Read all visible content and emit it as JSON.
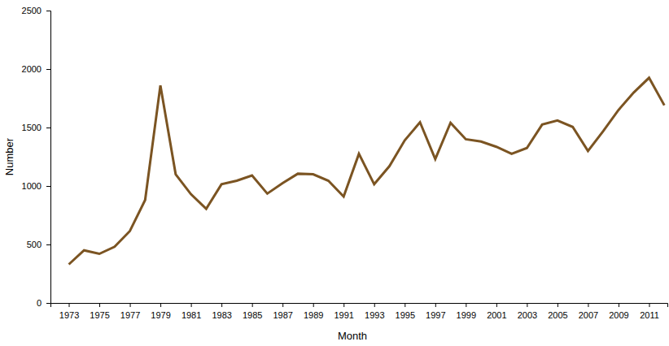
{
  "chart_data": {
    "type": "line",
    "x_label": "Month",
    "y_label": "Number",
    "x": [
      1973,
      1974,
      1975,
      1976,
      1977,
      1978,
      1979,
      1980,
      1981,
      1982,
      1983,
      1984,
      1985,
      1986,
      1987,
      1988,
      1989,
      1990,
      1991,
      1992,
      1993,
      1994,
      1995,
      1996,
      1997,
      1998,
      1999,
      2000,
      2001,
      2002,
      2003,
      2004,
      2005,
      2006,
      2007,
      2008,
      2009,
      2010,
      2011,
      2012
    ],
    "values": [
      330,
      450,
      420,
      480,
      615,
      880,
      1860,
      1100,
      930,
      805,
      1015,
      1045,
      1090,
      935,
      1025,
      1105,
      1100,
      1045,
      910,
      1275,
      1015,
      1170,
      1390,
      1545,
      1230,
      1540,
      1400,
      1380,
      1335,
      1275,
      1325,
      1525,
      1560,
      1505,
      1300,
      1470,
      1650,
      1800,
      1925,
      1690
    ],
    "color": "#7b5422",
    "xlim": [
      1971.8,
      2012.2
    ],
    "xticks": [
      1973,
      1975,
      1977,
      1979,
      1981,
      1983,
      1985,
      1987,
      1989,
      1991,
      1993,
      1995,
      1997,
      1999,
      2001,
      2003,
      2005,
      2007,
      2009,
      2011
    ],
    "ylim": [
      0,
      2500
    ],
    "yticks": [
      0,
      500,
      1000,
      1500,
      2000,
      2500
    ],
    "grid": false
  }
}
